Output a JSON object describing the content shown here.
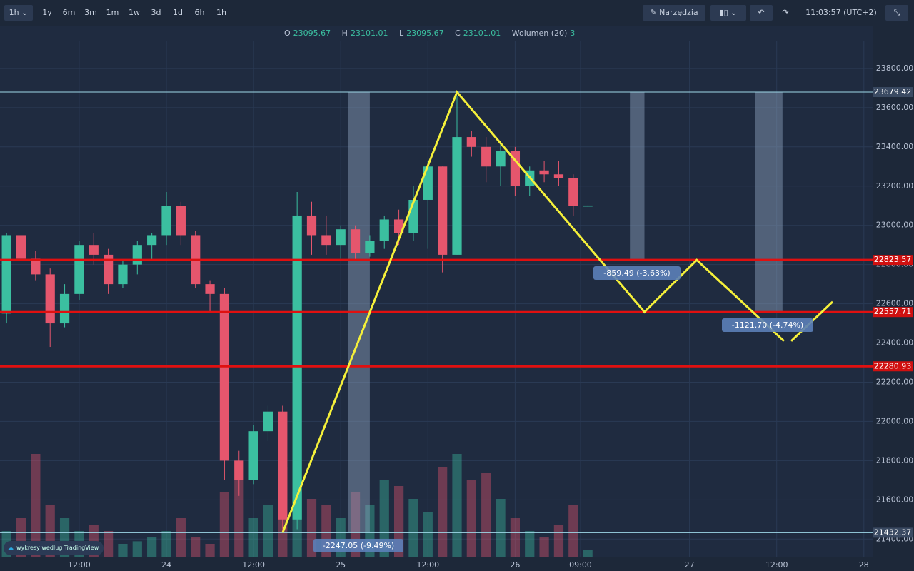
{
  "toolbar": {
    "interval": "1h",
    "intervals": [
      "1y",
      "6m",
      "3m",
      "1m",
      "1w",
      "3d",
      "1d",
      "6h",
      "1h"
    ],
    "tools": "Narzędzia",
    "clock": "11:03:57",
    "timezone": "(UTC+2)"
  },
  "legend": {
    "o_label": "O",
    "o": "23095.67",
    "h_label": "H",
    "h": "23101.01",
    "l_label": "L",
    "l": "23095.67",
    "c_label": "C",
    "c": "23101.01",
    "volume_label": "Wolumen (20)",
    "volume": "3"
  },
  "chart_data": {
    "type": "candlestick",
    "xlim": [
      -22.9,
      97.2
    ],
    "ylim": [
      21310,
      23938
    ],
    "xticks": [
      {
        "value": -12,
        "label": "12:00"
      },
      {
        "value": 0,
        "label": "24"
      },
      {
        "value": 12,
        "label": "12:00"
      },
      {
        "value": 24,
        "label": "25"
      },
      {
        "value": 36,
        "label": "12:00"
      },
      {
        "value": 48,
        "label": "26"
      },
      {
        "value": 57,
        "label": "09:00"
      },
      {
        "value": 72,
        "label": "27"
      },
      {
        "value": 84,
        "label": "12:00"
      },
      {
        "value": 96,
        "label": "28"
      }
    ],
    "yticks": [
      {
        "value": 23800,
        "label": "23800.00"
      },
      {
        "value": 23600,
        "label": "23600.00"
      },
      {
        "value": 23400,
        "label": "23400.00"
      },
      {
        "value": 23200,
        "label": "23200.00"
      },
      {
        "value": 23000,
        "label": "23000.00"
      },
      {
        "value": 22800,
        "label": "22800.00"
      },
      {
        "value": 22600,
        "label": "22600.00"
      },
      {
        "value": 22400,
        "label": "22400.00"
      },
      {
        "value": 22200,
        "label": "22200.00"
      },
      {
        "value": 22000,
        "label": "22000.00"
      },
      {
        "value": 21800,
        "label": "21800.00"
      },
      {
        "value": 21600,
        "label": "21600.00"
      },
      {
        "value": 21400,
        "label": "21400.00"
      }
    ],
    "grid": true,
    "up_color": "#3bbfa0",
    "down_color": "#e5566d",
    "candles": [
      [
        -22,
        22550,
        22960,
        22500,
        22950
      ],
      [
        -20,
        22950,
        22980,
        22780,
        22830
      ],
      [
        -18,
        22830,
        22870,
        22720,
        22750
      ],
      [
        -16,
        22750,
        22780,
        22380,
        22500
      ],
      [
        -14,
        22500,
        22700,
        22480,
        22650
      ],
      [
        -12,
        22650,
        22920,
        22620,
        22900
      ],
      [
        -10,
        22900,
        22960,
        22800,
        22850
      ],
      [
        -8,
        22850,
        22880,
        22650,
        22700
      ],
      [
        -6,
        22700,
        22820,
        22680,
        22800
      ],
      [
        -4,
        22800,
        22920,
        22750,
        22900
      ],
      [
        -2,
        22900,
        22960,
        22820,
        22950
      ],
      [
        0,
        22950,
        23170,
        22900,
        23100
      ],
      [
        2,
        23100,
        23120,
        22900,
        22950
      ],
      [
        4,
        22950,
        22970,
        22680,
        22700
      ],
      [
        6,
        22700,
        22720,
        22560,
        22650
      ],
      [
        8,
        22650,
        22680,
        21700,
        21800
      ],
      [
        10,
        21800,
        21850,
        21620,
        21700
      ],
      [
        12,
        21700,
        21980,
        21680,
        21950
      ],
      [
        14,
        21950,
        22080,
        21900,
        22050
      ],
      [
        16,
        22050,
        22080,
        21430,
        21500
      ],
      [
        18,
        21500,
        23170,
        21450,
        23050
      ],
      [
        20,
        23050,
        23120,
        22850,
        22950
      ],
      [
        22,
        22950,
        23050,
        22850,
        22900
      ],
      [
        24,
        22900,
        23000,
        22830,
        22980
      ],
      [
        26,
        22980,
        23000,
        22820,
        22860
      ],
      [
        28,
        22860,
        22950,
        22840,
        22920
      ],
      [
        30,
        22920,
        23050,
        22880,
        23030
      ],
      [
        32,
        23030,
        23080,
        22900,
        22960
      ],
      [
        34,
        22960,
        23200,
        22920,
        23130
      ],
      [
        36,
        23130,
        23330,
        22880,
        23300
      ],
      [
        38,
        23300,
        23300,
        22760,
        22850
      ],
      [
        40,
        22850,
        23660,
        22850,
        23450
      ],
      [
        42,
        23450,
        23480,
        23350,
        23400
      ],
      [
        44,
        23400,
        23450,
        23220,
        23300
      ],
      [
        46,
        23300,
        23420,
        23200,
        23380
      ],
      [
        48,
        23380,
        23400,
        23150,
        23200
      ],
      [
        50,
        23200,
        23300,
        23150,
        23280
      ],
      [
        52,
        23280,
        23330,
        23220,
        23260
      ],
      [
        54,
        23260,
        23330,
        23200,
        23240
      ],
      [
        56,
        23240,
        23260,
        23050,
        23100
      ],
      [
        58,
        23095.67,
        23101.01,
        23095.67,
        23101.01
      ]
    ],
    "volumes": [
      20,
      30,
      80,
      40,
      30,
      20,
      25,
      20,
      10,
      12,
      15,
      20,
      30,
      15,
      10,
      50,
      60,
      30,
      40,
      70,
      50,
      45,
      40,
      30,
      50,
      40,
      60,
      55,
      45,
      35,
      70,
      80,
      60,
      65,
      45,
      30,
      20,
      15,
      25,
      40,
      5
    ],
    "price_lines": [
      {
        "value": 23679.42,
        "color": "#9fd8e8",
        "width": 1
      },
      {
        "value": 22823.57,
        "color": "#e01010",
        "width": 3
      },
      {
        "value": 22557.71,
        "color": "#e01010",
        "width": 3
      },
      {
        "value": 22280.93,
        "color": "#e01010",
        "width": 3
      },
      {
        "value": 21432.37,
        "color": "#9fd8e8",
        "width": 1
      }
    ],
    "zones": [
      [
        25,
        28,
        23679.42,
        21432.37
      ],
      [
        63.8,
        65.8,
        23679.42,
        22823.57
      ],
      [
        81,
        84.8,
        23679.42,
        22557.71
      ]
    ],
    "zigzag": [
      {
        "x": [
          16,
          40,
          65.8,
          73,
          85
        ],
        "y": [
          21432.37,
          23679.42,
          22557.71,
          22823.57,
          22410
        ]
      },
      {
        "x": [
          86,
          91.7
        ],
        "y": [
          22410,
          22610
        ]
      }
    ],
    "zigzag_color": "#f5f03a",
    "annotations": [
      "-859.49 (-3.63%)",
      "-1121.70 (-4.74%)",
      "-2247.05 (-9.49%)"
    ]
  },
  "branding": {
    "prefix": "wykresy według",
    "name": "TradingView"
  }
}
